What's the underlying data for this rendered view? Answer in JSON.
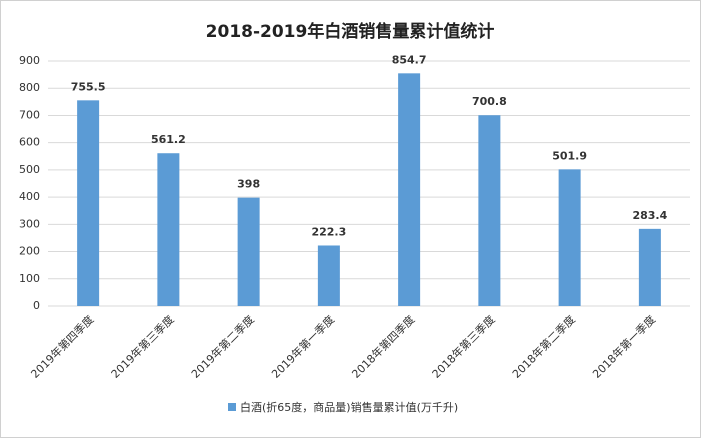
{
  "chart_data": {
    "type": "bar",
    "title": "2018-2019年白酒销售量累计值统计",
    "categories": [
      "2019年第四季度",
      "2019年第三季度",
      "2019年第二季度",
      "2019年第一季度",
      "2018年第四季度",
      "2018年第三季度",
      "2018年第二季度",
      "2018年第一季度"
    ],
    "series": [
      {
        "name": "白酒(折65度，商品量)销售量累计值(万千升)",
        "color": "#5b9bd5",
        "values": [
          755.5,
          561.2,
          398,
          222.3,
          854.7,
          700.8,
          501.9,
          283.4
        ]
      }
    ],
    "ylim": [
      0,
      900
    ],
    "yticks": [
      0,
      100,
      200,
      300,
      400,
      500,
      600,
      700,
      800,
      900
    ],
    "grid": true,
    "legend": "bottom"
  }
}
